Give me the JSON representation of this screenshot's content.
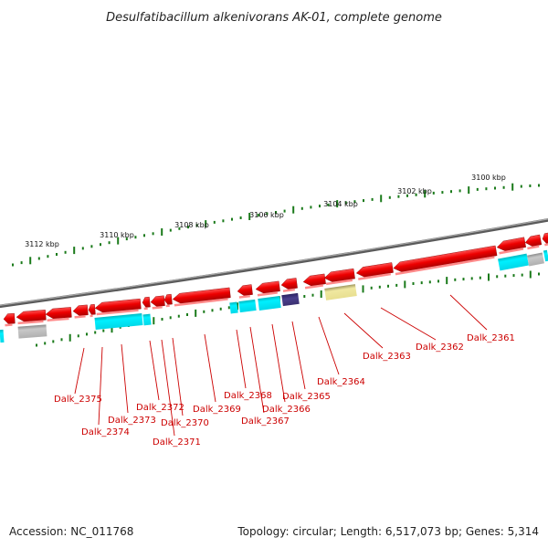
{
  "title": "Desulfatibacillum alkenivorans AK-01, complete genome",
  "footer": {
    "accession": "Accession: NC_011768",
    "summary": "Topology: circular; Length: 6,517,073 bp; Genes: 5,314"
  },
  "ruler": {
    "tick_labels": [
      "3112 kbp",
      "3110 kbp",
      "3108 kbp",
      "3106 kbp",
      "3104 kbp",
      "3102 kbp",
      "3100 kbp"
    ]
  },
  "genes": [
    "Dalk_2375",
    "Dalk_2374",
    "Dalk_2373",
    "Dalk_2372",
    "Dalk_2371",
    "Dalk_2370",
    "Dalk_2369",
    "Dalk_2368",
    "Dalk_2367",
    "Dalk_2366",
    "Dalk_2365",
    "Dalk_2364",
    "Dalk_2363",
    "Dalk_2362",
    "Dalk_2361"
  ],
  "colors": {
    "forward_cds": "#ee0000",
    "reverse_cds": "#ee0000",
    "rna_feature": "#00e8f0",
    "other_feature": "#b8b8b8",
    "dark_feature": "#4a3f8c",
    "pseudo_feature": "#f0e8a0",
    "backbone": "#8a8a8a",
    "label": "#cc0000",
    "tick": "#1a7a1a"
  }
}
